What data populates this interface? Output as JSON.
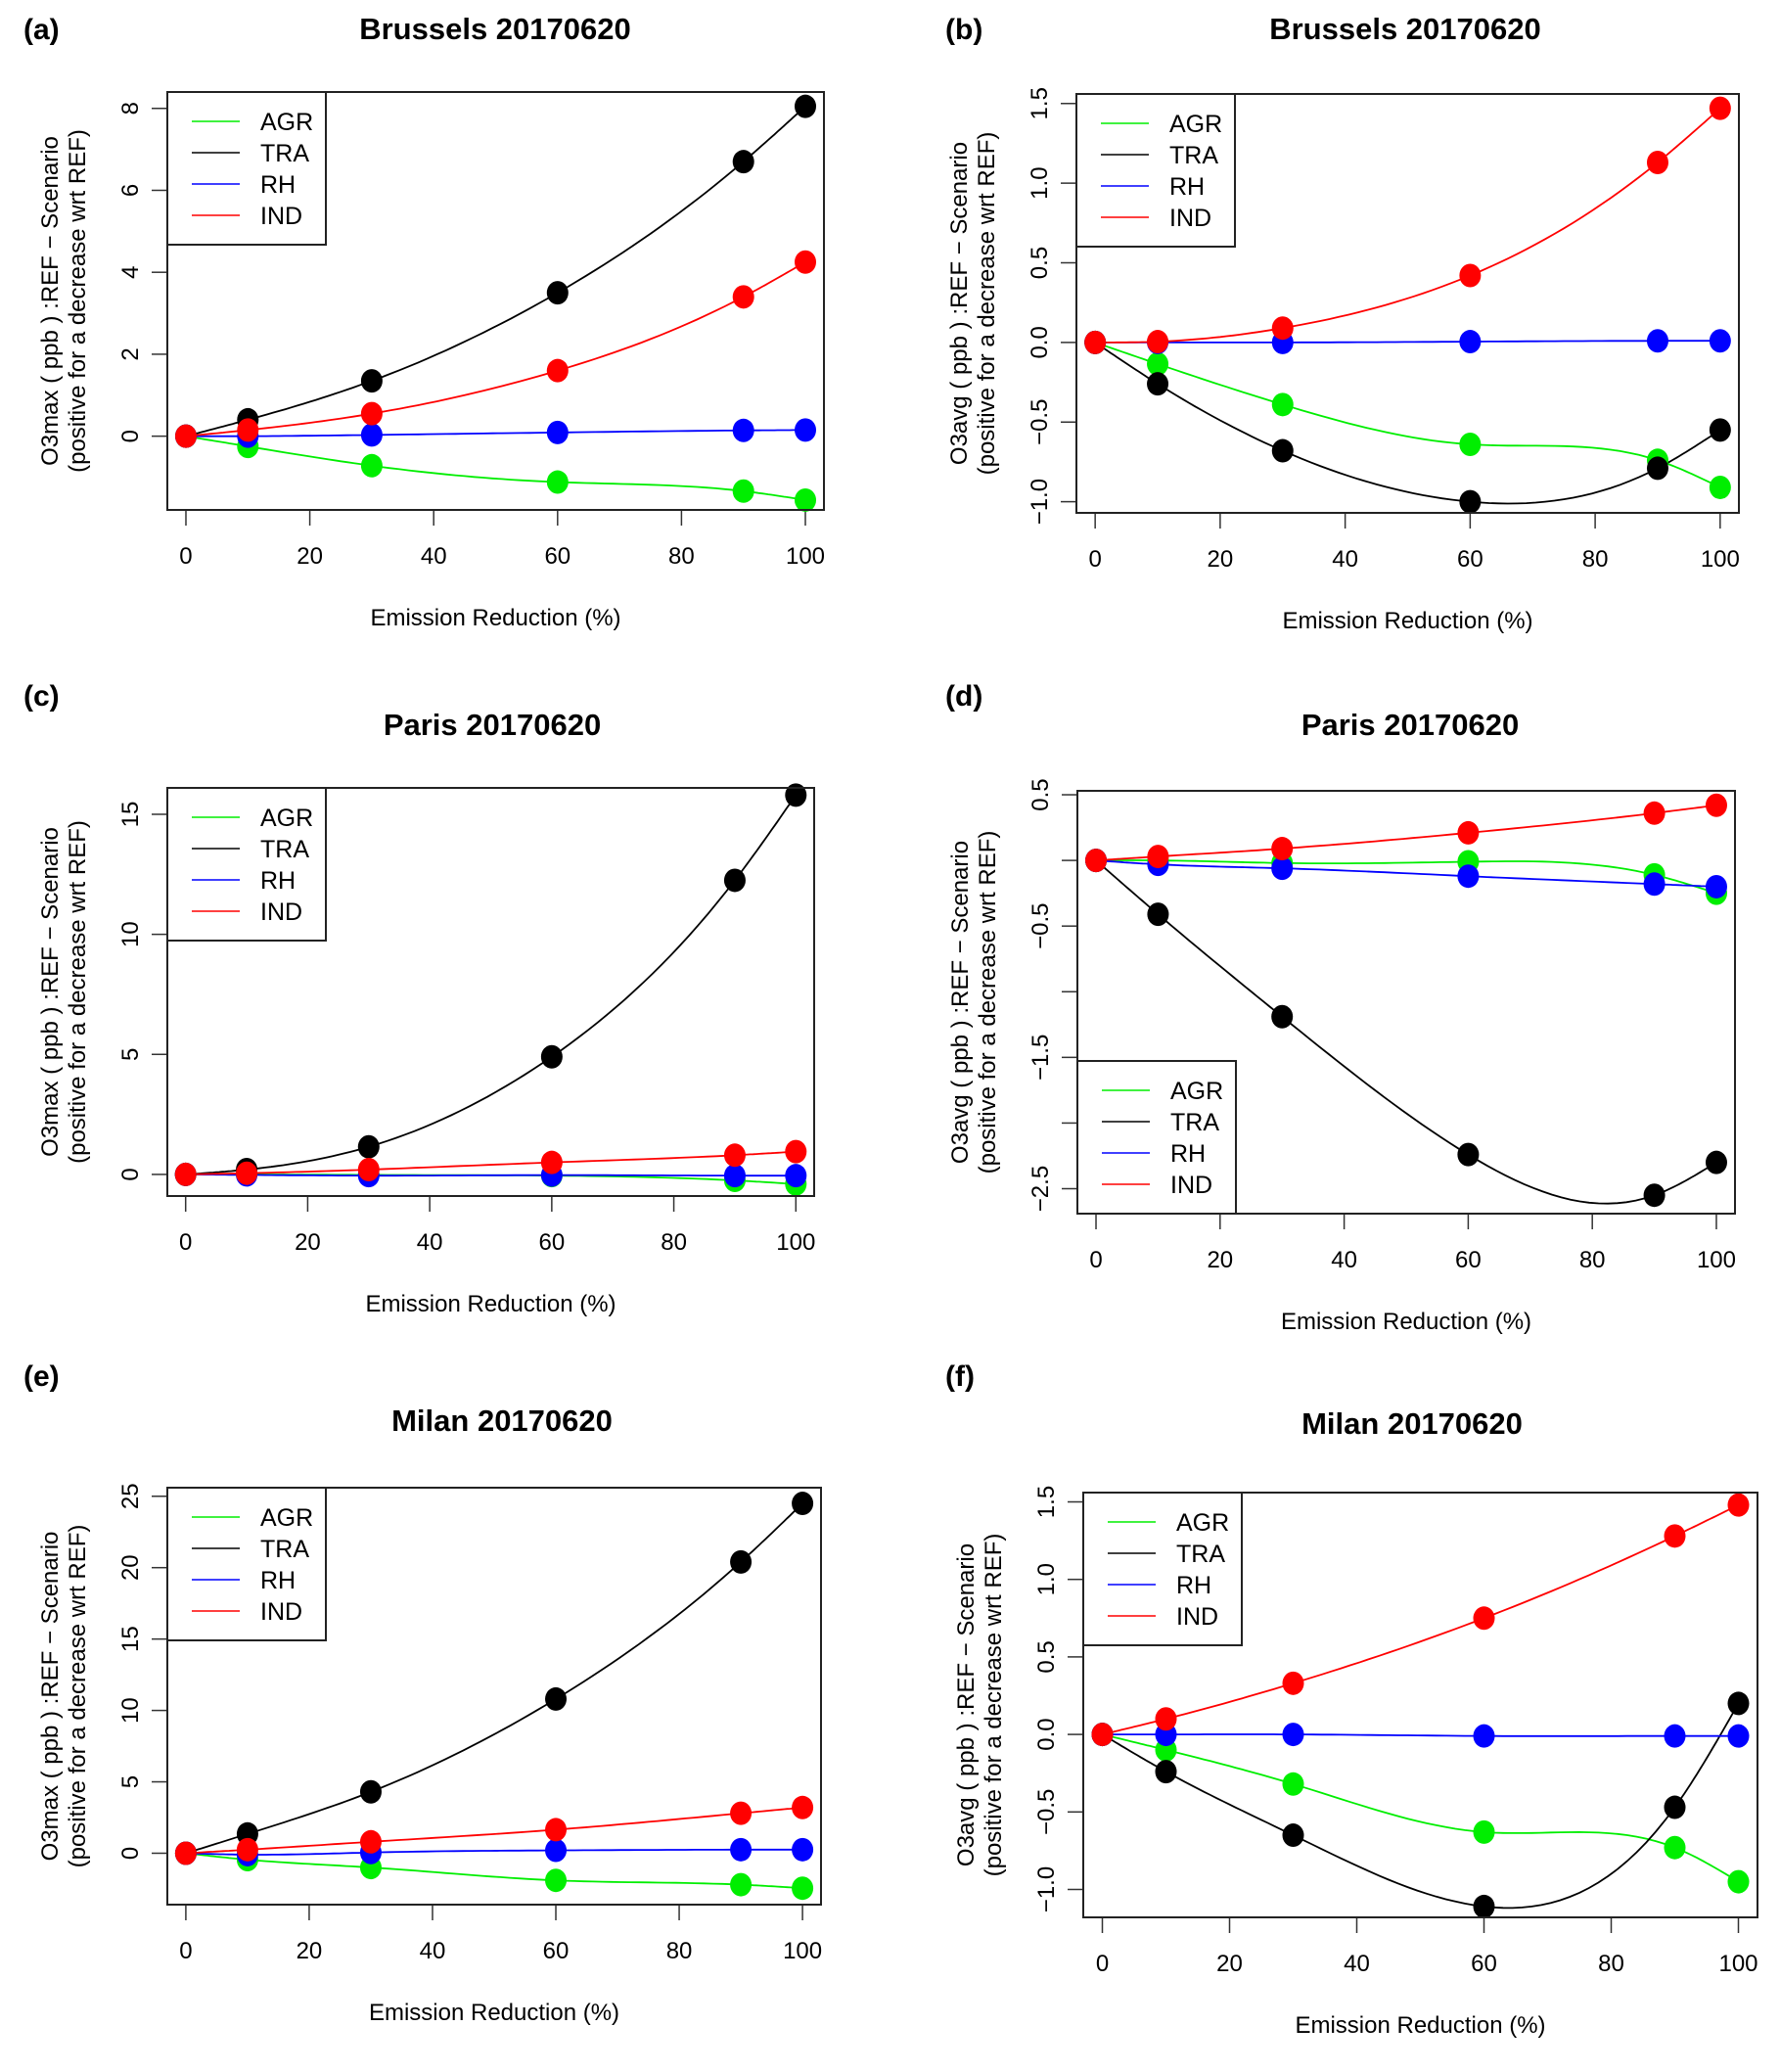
{
  "chart_data": [
    {
      "type": "line",
      "panel_tag": "(a)",
      "title": "Brussels 20170620",
      "xlabel": "Emission Reduction (%)",
      "ylabel_line1": "O3max ( ppb ) :REF − Scenario",
      "ylabel_line2": "(positive for a decrease wrt REF)",
      "xlim": [
        -3,
        103
      ],
      "ylim": [
        -1.8,
        8.4
      ],
      "x_ticks": [
        0,
        20,
        40,
        60,
        80,
        100
      ],
      "y_ticks": [
        0,
        2,
        4,
        6,
        8
      ],
      "y_tick_labels": [
        "0",
        "2",
        "4",
        "6",
        "8"
      ],
      "legend_position": "top-left",
      "x": [
        0,
        10,
        30,
        60,
        90,
        100
      ],
      "series": [
        {
          "name": "AGR",
          "color": "#00ee00",
          "values": [
            0,
            -0.25,
            -0.72,
            -1.12,
            -1.34,
            -1.56
          ]
        },
        {
          "name": "TRA",
          "color": "#000000",
          "values": [
            0,
            0.4,
            1.35,
            3.5,
            6.7,
            8.05
          ]
        },
        {
          "name": "RH",
          "color": "#0000ff",
          "values": [
            0,
            0.0,
            0.03,
            0.09,
            0.14,
            0.15
          ]
        },
        {
          "name": "IND",
          "color": "#ff0000",
          "values": [
            0,
            0.15,
            0.55,
            1.6,
            3.4,
            4.25
          ]
        }
      ]
    },
    {
      "type": "line",
      "panel_tag": "(b)",
      "title": "Brussels 20170620",
      "xlabel": "Emission Reduction (%)",
      "ylabel_line1": "O3avg ( ppb ) :REF − Scenario",
      "ylabel_line2": "(positive for a decrease wrt REF)",
      "xlim": [
        -3,
        103
      ],
      "ylim": [
        -1.07,
        1.56
      ],
      "x_ticks": [
        0,
        20,
        40,
        60,
        80,
        100
      ],
      "y_ticks": [
        -1.0,
        -0.5,
        0.0,
        0.5,
        1.0,
        1.5
      ],
      "y_tick_labels": [
        "−1.0",
        "−0.5",
        "0.0",
        "0.5",
        "1.0",
        "1.5"
      ],
      "legend_position": "top-left",
      "x": [
        0,
        10,
        30,
        60,
        90,
        100
      ],
      "series": [
        {
          "name": "AGR",
          "color": "#00ee00",
          "values": [
            0,
            -0.135,
            -0.39,
            -0.64,
            -0.74,
            -0.91
          ]
        },
        {
          "name": "TRA",
          "color": "#000000",
          "values": [
            0,
            -0.26,
            -0.68,
            -1.0,
            -0.79,
            -0.55
          ]
        },
        {
          "name": "RH",
          "color": "#0000ff",
          "values": [
            0,
            0.0,
            0.0,
            0.005,
            0.01,
            0.01
          ]
        },
        {
          "name": "IND",
          "color": "#ff0000",
          "values": [
            0,
            0.005,
            0.09,
            0.42,
            1.13,
            1.47
          ]
        }
      ]
    },
    {
      "type": "line",
      "panel_tag": "(c)",
      "title": "Paris 20170620",
      "xlabel": "Emission Reduction (%)",
      "ylabel_line1": "O3max ( ppb ) :REF − Scenario",
      "ylabel_line2": "(positive for a decrease wrt REF)",
      "xlim": [
        -3,
        103
      ],
      "ylim": [
        -0.9,
        16.1
      ],
      "x_ticks": [
        0,
        20,
        40,
        60,
        80,
        100
      ],
      "y_ticks": [
        0,
        5,
        10,
        15
      ],
      "y_tick_labels": [
        "0",
        "5",
        "10",
        "15"
      ],
      "legend_position": "top-left",
      "x": [
        0,
        10,
        30,
        60,
        90,
        100
      ],
      "series": [
        {
          "name": "AGR",
          "color": "#00ee00",
          "values": [
            0,
            0.0,
            -0.02,
            -0.05,
            -0.25,
            -0.4
          ]
        },
        {
          "name": "TRA",
          "color": "#000000",
          "values": [
            0,
            0.2,
            1.15,
            4.9,
            12.25,
            15.8
          ]
        },
        {
          "name": "RH",
          "color": "#0000ff",
          "values": [
            0,
            -0.02,
            -0.05,
            -0.03,
            -0.05,
            -0.05
          ]
        },
        {
          "name": "IND",
          "color": "#ff0000",
          "values": [
            0,
            0.05,
            0.2,
            0.5,
            0.8,
            0.95
          ]
        }
      ]
    },
    {
      "type": "line",
      "panel_tag": "(d)",
      "title": "Paris 20170620",
      "xlabel": "Emission Reduction (%)",
      "ylabel_line1": "O3avg ( ppb ) :REF − Scenario",
      "ylabel_line2": "(positive for a decrease wrt REF)",
      "xlim": [
        -3,
        103
      ],
      "ylim": [
        -2.69,
        0.53
      ],
      "x_ticks": [
        0,
        20,
        40,
        60,
        80,
        100
      ],
      "y_ticks": [
        -2.5,
        -2.0,
        -1.5,
        -1.0,
        -0.5,
        0.0,
        0.5
      ],
      "y_tick_labels": [
        "−2.5",
        "",
        "−1.5",
        "",
        "−0.5",
        "",
        "0.5"
      ],
      "legend_position": "bottom-left",
      "x": [
        0,
        10,
        30,
        60,
        90,
        100
      ],
      "series": [
        {
          "name": "AGR",
          "color": "#00ee00",
          "values": [
            0,
            0.0,
            -0.02,
            -0.01,
            -0.11,
            -0.25
          ]
        },
        {
          "name": "TRA",
          "color": "#000000",
          "values": [
            0,
            -0.41,
            -1.19,
            -2.24,
            -2.55,
            -2.3
          ]
        },
        {
          "name": "RH",
          "color": "#0000ff",
          "values": [
            0,
            -0.03,
            -0.06,
            -0.12,
            -0.18,
            -0.2
          ]
        },
        {
          "name": "IND",
          "color": "#ff0000",
          "values": [
            0,
            0.03,
            0.09,
            0.21,
            0.36,
            0.42
          ]
        }
      ]
    },
    {
      "type": "line",
      "panel_tag": "(e)",
      "title": "Milan 20170620",
      "xlabel": "Emission Reduction (%)",
      "ylabel_line1": "O3max ( ppb ) :REF − Scenario",
      "ylabel_line2": "(positive for a decrease wrt REF)",
      "xlim": [
        -3,
        103
      ],
      "ylim": [
        -3.6,
        25.6
      ],
      "x_ticks": [
        0,
        20,
        40,
        60,
        80,
        100
      ],
      "y_ticks": [
        0,
        5,
        10,
        15,
        20,
        25
      ],
      "y_tick_labels": [
        "0",
        "5",
        "10",
        "15",
        "20",
        "25"
      ],
      "legend_position": "top-left",
      "x": [
        0,
        10,
        30,
        60,
        90,
        100
      ],
      "series": [
        {
          "name": "AGR",
          "color": "#00ee00",
          "values": [
            0,
            -0.45,
            -1.0,
            -1.9,
            -2.2,
            -2.45
          ]
        },
        {
          "name": "TRA",
          "color": "#000000",
          "values": [
            0,
            1.35,
            4.3,
            10.8,
            20.4,
            24.5
          ]
        },
        {
          "name": "RH",
          "color": "#0000ff",
          "values": [
            0,
            -0.1,
            0.05,
            0.2,
            0.25,
            0.25
          ]
        },
        {
          "name": "IND",
          "color": "#ff0000",
          "values": [
            0,
            0.25,
            0.8,
            1.65,
            2.8,
            3.2
          ]
        }
      ]
    },
    {
      "type": "line",
      "panel_tag": "(f)",
      "title": "Milan 20170620",
      "xlabel": "Emission Reduction (%)",
      "ylabel_line1": "O3avg ( ppb ) :REF − Scenario",
      "ylabel_line2": "(positive for a decrease wrt REF)",
      "xlim": [
        -3,
        103
      ],
      "ylim": [
        -1.18,
        1.56
      ],
      "x_ticks": [
        0,
        20,
        40,
        60,
        80,
        100
      ],
      "y_ticks": [
        -1.0,
        -0.5,
        0.0,
        0.5,
        1.0,
        1.5
      ],
      "y_tick_labels": [
        "−1.0",
        "−0.5",
        "0.0",
        "0.5",
        "1.0",
        "1.5"
      ],
      "legend_position": "top-left",
      "x": [
        0,
        10,
        30,
        60,
        90,
        100
      ],
      "series": [
        {
          "name": "AGR",
          "color": "#00ee00",
          "values": [
            0,
            -0.1,
            -0.32,
            -0.63,
            -0.73,
            -0.95
          ]
        },
        {
          "name": "TRA",
          "color": "#000000",
          "values": [
            0,
            -0.24,
            -0.65,
            -1.11,
            -0.47,
            0.2
          ]
        },
        {
          "name": "RH",
          "color": "#0000ff",
          "values": [
            0,
            0.0,
            0.0,
            -0.01,
            -0.01,
            -0.01
          ]
        },
        {
          "name": "IND",
          "color": "#ff0000",
          "values": [
            0,
            0.1,
            0.33,
            0.75,
            1.28,
            1.48
          ]
        }
      ]
    }
  ]
}
